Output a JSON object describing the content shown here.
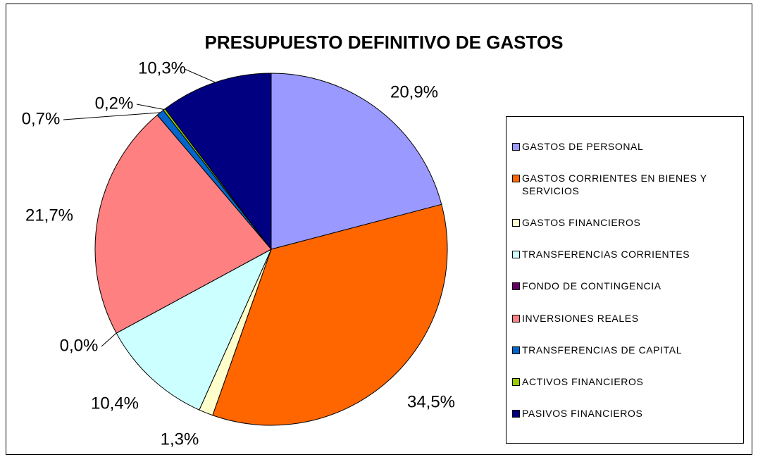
{
  "chart_data": {
    "type": "pie",
    "title": "PRESUPUESTO DEFINITIVO DE GASTOS",
    "categories": [
      "GASTOS DE PERSONAL",
      "GASTOS CORRIENTES EN BIENES Y SERVICIOS",
      "GASTOS FINANCIEROS",
      "TRANSFERENCIAS CORRIENTES",
      "FONDO DE CONTINGENCIA",
      "INVERSIONES REALES",
      "TRANSFERENCIAS DE CAPITAL",
      "ACTIVOS FINANCIEROS",
      "PASIVOS FINANCIEROS"
    ],
    "values": [
      20.9,
      34.5,
      1.3,
      10.4,
      0.0,
      21.7,
      0.7,
      0.2,
      10.3
    ],
    "value_labels": [
      "20,9%",
      "34,5%",
      "1,3%",
      "10,4%",
      "0,0%",
      "21,7%",
      "0,7%",
      "0,2%",
      "10,3%"
    ],
    "colors": [
      "#9999ff",
      "#ff6600",
      "#ffffcc",
      "#ccffff",
      "#660066",
      "#ff8080",
      "#0066cc",
      "#99cc00",
      "#000080"
    ],
    "legend": "right"
  }
}
